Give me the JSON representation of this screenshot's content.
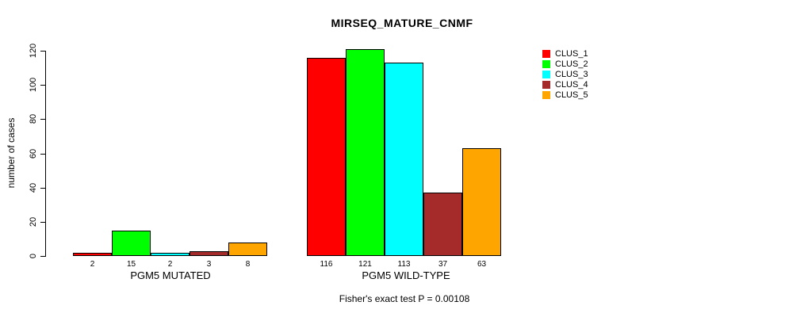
{
  "chart_data": {
    "type": "bar",
    "title": "MIRSEQ_MATURE_CNMF",
    "ylabel": "number of cases",
    "ylim": [
      0,
      120
    ],
    "yticks": [
      0,
      20,
      40,
      60,
      80,
      100,
      120
    ],
    "grid": false,
    "legend_position": "right",
    "groups": [
      "PGM5 MUTATED",
      "PGM5 WILD-TYPE"
    ],
    "series": [
      {
        "name": "CLUS_1",
        "color": "#ff0000",
        "values": [
          2,
          116
        ]
      },
      {
        "name": "CLUS_2",
        "color": "#00ff00",
        "values": [
          15,
          121
        ]
      },
      {
        "name": "CLUS_3",
        "color": "#00ffff",
        "values": [
          2,
          113
        ]
      },
      {
        "name": "CLUS_4",
        "color": "#a52a2a",
        "values": [
          3,
          37
        ]
      },
      {
        "name": "CLUS_5",
        "color": "#ffa500",
        "values": [
          8,
          63
        ]
      }
    ],
    "footnote": "Fisher's exact test P = 0.00108"
  }
}
